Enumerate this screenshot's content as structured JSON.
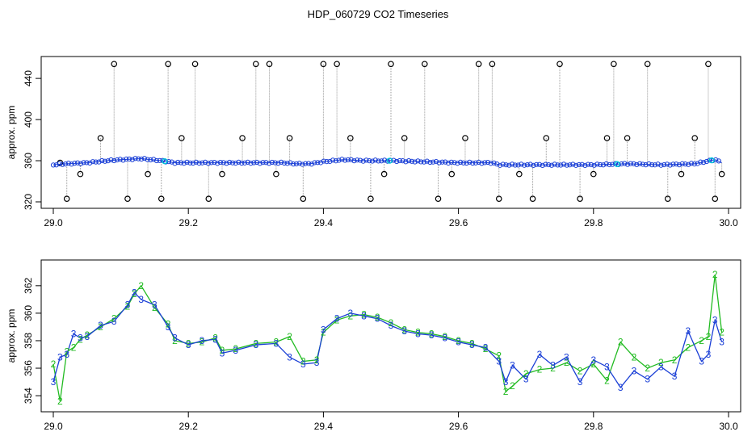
{
  "title": "HDP_060729  CO2 Timeseries",
  "colors": {
    "axis": "#000000",
    "raw_line": "#9a9a9a",
    "outlier": "#000000",
    "series2": "#22bb22",
    "series3": "#1a3fd6",
    "cyan": "#00c8d8"
  },
  "chart_data": [
    {
      "type": "scatter",
      "ylabel": "approx. ppm",
      "xlabel": "",
      "xlim": [
        29.0,
        30.0
      ],
      "ylim": [
        320,
        455
      ],
      "x_ticks": [
        "29.0",
        "29.2",
        "29.4",
        "29.6",
        "29.8",
        "30.0"
      ],
      "y_ticks": [
        "320",
        "360",
        "400",
        "440"
      ],
      "baseline": [
        [
          29.0,
          356
        ],
        [
          29.02,
          357
        ],
        [
          29.05,
          358
        ],
        [
          29.08,
          360
        ],
        [
          29.1,
          361
        ],
        [
          29.13,
          362
        ],
        [
          29.16,
          360
        ],
        [
          29.18,
          358
        ],
        [
          29.22,
          358
        ],
        [
          29.26,
          358
        ],
        [
          29.3,
          358
        ],
        [
          29.34,
          358
        ],
        [
          29.36,
          357
        ],
        [
          29.38,
          357
        ],
        [
          29.4,
          359
        ],
        [
          29.43,
          361
        ],
        [
          29.46,
          360
        ],
        [
          29.5,
          360
        ],
        [
          29.55,
          359
        ],
        [
          29.6,
          358
        ],
        [
          29.65,
          358
        ],
        [
          29.66,
          356
        ],
        [
          29.7,
          356
        ],
        [
          29.75,
          356
        ],
        [
          29.8,
          356
        ],
        [
          29.85,
          357
        ],
        [
          29.9,
          356
        ],
        [
          29.95,
          357
        ],
        [
          29.98,
          361
        ],
        [
          29.99,
          358
        ]
      ],
      "outliers_x": [
        29.01,
        29.02,
        29.04,
        29.07,
        29.09,
        29.11,
        29.14,
        29.16,
        29.17,
        29.19,
        29.21,
        29.23,
        29.25,
        29.28,
        29.3,
        29.32,
        29.33,
        29.35,
        29.37,
        29.4,
        29.42,
        29.44,
        29.47,
        29.49,
        29.5,
        29.52,
        29.55,
        29.57,
        29.59,
        29.61,
        29.63,
        29.65,
        29.66,
        29.69,
        29.71,
        29.73,
        29.75,
        29.78,
        29.8,
        29.82,
        29.83,
        29.85,
        29.88,
        29.91,
        29.93,
        29.95,
        29.97,
        29.98,
        29.99
      ],
      "outliers_y": [
        358,
        323,
        347,
        382,
        454,
        323,
        347,
        323,
        454,
        382,
        454,
        323,
        347,
        382,
        454,
        454,
        347,
        382,
        323,
        454,
        454,
        382,
        323,
        347,
        454,
        382,
        454,
        323,
        347,
        382,
        454,
        454,
        323,
        347,
        323,
        382,
        454,
        323,
        347,
        382,
        454,
        382,
        454,
        323,
        347,
        382,
        454,
        323,
        347
      ]
    },
    {
      "type": "line",
      "ylabel": "approx. ppm",
      "xlabel": "",
      "xlim": [
        29.0,
        30.0
      ],
      "ylim": [
        353.3,
        363.4
      ],
      "x_ticks": [
        "29.0",
        "29.2",
        "29.4",
        "29.6",
        "29.8",
        "30.0"
      ],
      "y_ticks": [
        "354",
        "356",
        "358",
        "360",
        "362"
      ],
      "series": [
        {
          "marker": "2",
          "x": [
            29.0,
            29.01,
            29.02,
            29.03,
            29.04,
            29.05,
            29.07,
            29.09,
            29.11,
            29.12,
            29.13,
            29.15,
            29.17,
            29.18,
            29.2,
            29.22,
            29.24,
            29.25,
            29.27,
            29.3,
            29.33,
            29.35,
            29.37,
            29.39,
            29.4,
            29.42,
            29.44,
            29.46,
            29.48,
            29.5,
            29.52,
            29.54,
            29.56,
            29.58,
            29.6,
            29.62,
            29.64,
            29.66,
            29.67,
            29.68,
            29.7,
            29.72,
            29.74,
            29.76,
            29.78,
            29.8,
            29.82,
            29.84,
            29.86,
            29.88,
            29.9,
            29.92,
            29.94,
            29.96,
            29.97,
            29.98,
            29.99
          ],
          "y": [
            356.3,
            353.6,
            357.2,
            357.5,
            358.1,
            358.4,
            359.0,
            359.6,
            360.5,
            361.4,
            362.0,
            360.4,
            359.2,
            358.0,
            357.8,
            357.9,
            358.2,
            357.3,
            357.4,
            357.8,
            357.9,
            358.3,
            356.5,
            356.6,
            358.6,
            359.5,
            359.8,
            359.9,
            359.7,
            359.3,
            358.8,
            358.6,
            358.5,
            358.3,
            358.0,
            357.8,
            357.4,
            356.9,
            354.3,
            354.7,
            355.6,
            355.9,
            356.0,
            356.4,
            355.8,
            356.3,
            355.1,
            357.9,
            356.8,
            356.0,
            356.4,
            356.6,
            357.5,
            358.0,
            358.3,
            362.8,
            358.6
          ]
        },
        {
          "marker": "3",
          "x": [
            29.0,
            29.01,
            29.02,
            29.03,
            29.04,
            29.05,
            29.07,
            29.09,
            29.11,
            29.12,
            29.13,
            29.15,
            29.17,
            29.18,
            29.2,
            29.22,
            29.24,
            29.25,
            29.27,
            29.3,
            29.33,
            29.35,
            29.37,
            29.39,
            29.4,
            29.42,
            29.44,
            29.46,
            29.48,
            29.5,
            29.52,
            29.54,
            29.56,
            29.58,
            29.6,
            29.62,
            29.64,
            29.66,
            29.67,
            29.68,
            29.7,
            29.72,
            29.74,
            29.76,
            29.78,
            29.8,
            29.82,
            29.84,
            29.86,
            29.88,
            29.9,
            29.92,
            29.94,
            29.96,
            29.97,
            29.98,
            29.99
          ],
          "y": [
            355.0,
            356.8,
            357.0,
            358.5,
            358.2,
            358.3,
            359.1,
            359.4,
            360.6,
            361.5,
            361.0,
            360.6,
            359.0,
            358.2,
            357.7,
            358.0,
            358.1,
            357.1,
            357.3,
            357.7,
            357.8,
            356.8,
            356.3,
            356.4,
            358.8,
            359.6,
            360.0,
            359.8,
            359.6,
            359.1,
            358.7,
            358.5,
            358.4,
            358.2,
            357.9,
            357.7,
            357.5,
            356.5,
            355.0,
            356.2,
            355.2,
            357.0,
            356.2,
            356.8,
            355.0,
            356.6,
            356.1,
            354.6,
            355.8,
            355.2,
            356.1,
            355.4,
            358.7,
            356.5,
            357.0,
            359.5,
            357.9
          ]
        }
      ]
    }
  ]
}
